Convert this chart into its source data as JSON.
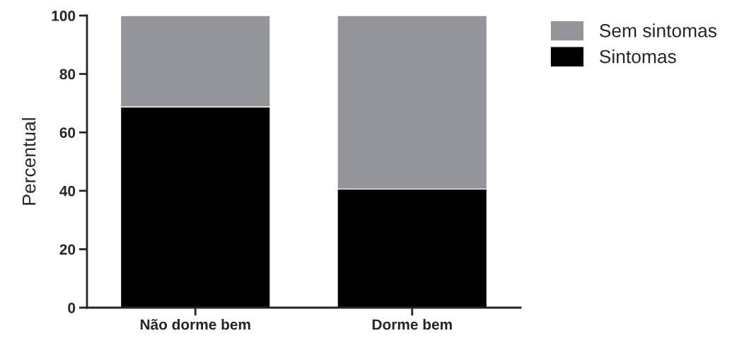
{
  "chart_data": {
    "type": "bar",
    "stacked": true,
    "ylabel": "Percentual",
    "categories": [
      "Não dorme bem",
      "Dorme bem"
    ],
    "series": [
      {
        "name": "Sintomas",
        "color": "#000000",
        "values": [
          68.7,
          40.6
        ]
      },
      {
        "name": "Sem sintomas",
        "color": "#939598",
        "values": [
          31.3,
          59.4
        ]
      }
    ],
    "ylim": [
      0,
      100
    ],
    "yticks": [
      0,
      20,
      40,
      60,
      80,
      100
    ],
    "grid": false,
    "legend": "top right"
  }
}
